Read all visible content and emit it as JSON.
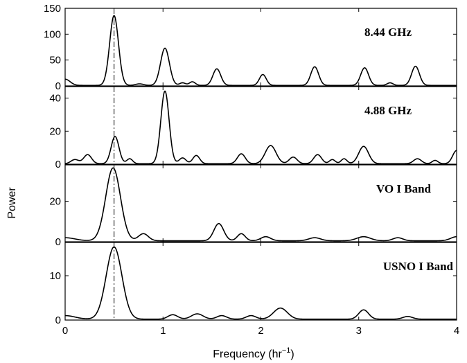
{
  "chart_data": {
    "type": "line",
    "xlabel": "Frequency (hr",
    "xlabel_sup": "−1",
    "xlabel_close": ")",
    "ylabel": "Power",
    "xlim": [
      0,
      4
    ],
    "xticks": [
      0,
      1,
      2,
      3,
      4
    ],
    "reference_line_x": 0.5,
    "panels": [
      {
        "name": "8.44 GHz",
        "ylim": [
          0,
          150
        ],
        "yticks": [
          0,
          50,
          100,
          150
        ],
        "baseline": 1,
        "peaks": [
          {
            "x": 0.0,
            "y": 12,
            "w": 0.05
          },
          {
            "x": 0.5,
            "y": 135,
            "w": 0.045
          },
          {
            "x": 0.76,
            "y": 3,
            "w": 0.04
          },
          {
            "x": 1.02,
            "y": 72,
            "w": 0.045
          },
          {
            "x": 1.2,
            "y": 5,
            "w": 0.03
          },
          {
            "x": 1.3,
            "y": 7,
            "w": 0.03
          },
          {
            "x": 1.55,
            "y": 32,
            "w": 0.04
          },
          {
            "x": 2.02,
            "y": 21,
            "w": 0.035
          },
          {
            "x": 2.55,
            "y": 36,
            "w": 0.04
          },
          {
            "x": 3.06,
            "y": 34,
            "w": 0.04
          },
          {
            "x": 3.32,
            "y": 5,
            "w": 0.03
          },
          {
            "x": 3.58,
            "y": 37,
            "w": 0.04
          }
        ]
      },
      {
        "name": "4.88 GHz",
        "ylim": [
          0,
          47
        ],
        "yticks": [
          0,
          20,
          40
        ],
        "baseline": 0.3,
        "peaks": [
          {
            "x": 0.1,
            "y": 2.5,
            "w": 0.04
          },
          {
            "x": 0.23,
            "y": 5.5,
            "w": 0.04
          },
          {
            "x": 0.51,
            "y": 16.5,
            "w": 0.04
          },
          {
            "x": 0.66,
            "y": 3,
            "w": 0.03
          },
          {
            "x": 1.02,
            "y": 44,
            "w": 0.042
          },
          {
            "x": 1.2,
            "y": 3.5,
            "w": 0.035
          },
          {
            "x": 1.34,
            "y": 5,
            "w": 0.035
          },
          {
            "x": 1.8,
            "y": 6,
            "w": 0.04
          },
          {
            "x": 2.1,
            "y": 11,
            "w": 0.055
          },
          {
            "x": 2.33,
            "y": 4,
            "w": 0.04
          },
          {
            "x": 2.58,
            "y": 5.5,
            "w": 0.04
          },
          {
            "x": 2.73,
            "y": 2.5,
            "w": 0.03
          },
          {
            "x": 2.85,
            "y": 3,
            "w": 0.03
          },
          {
            "x": 3.05,
            "y": 10.5,
            "w": 0.05
          },
          {
            "x": 3.6,
            "y": 3,
            "w": 0.04
          },
          {
            "x": 3.78,
            "y": 2,
            "w": 0.03
          },
          {
            "x": 4.0,
            "y": 8,
            "w": 0.04
          }
        ]
      },
      {
        "name": "VO I Band",
        "ylim": [
          0,
          38
        ],
        "yticks": [
          0,
          20
        ],
        "baseline": 0.5,
        "peaks": [
          {
            "x": 0.0,
            "y": 1.5,
            "w": 0.1
          },
          {
            "x": 0.49,
            "y": 36,
            "w": 0.075
          },
          {
            "x": 0.8,
            "y": 3.5,
            "w": 0.05
          },
          {
            "x": 1.57,
            "y": 8.5,
            "w": 0.05
          },
          {
            "x": 1.8,
            "y": 3.5,
            "w": 0.04
          },
          {
            "x": 2.05,
            "y": 2,
            "w": 0.05
          },
          {
            "x": 2.55,
            "y": 1.5,
            "w": 0.06
          },
          {
            "x": 3.05,
            "y": 2,
            "w": 0.07
          },
          {
            "x": 3.4,
            "y": 1.5,
            "w": 0.05
          },
          {
            "x": 4.0,
            "y": 2,
            "w": 0.06
          }
        ]
      },
      {
        "name": "USNO I Band",
        "ylim": [
          0,
          17.5
        ],
        "yticks": [
          0,
          10
        ],
        "baseline": 0.2,
        "peaks": [
          {
            "x": 0.0,
            "y": 0.8,
            "w": 0.1
          },
          {
            "x": 0.5,
            "y": 16.3,
            "w": 0.08
          },
          {
            "x": 1.1,
            "y": 1,
            "w": 0.05
          },
          {
            "x": 1.35,
            "y": 1.2,
            "w": 0.06
          },
          {
            "x": 1.6,
            "y": 0.8,
            "w": 0.05
          },
          {
            "x": 1.9,
            "y": 0.8,
            "w": 0.05
          },
          {
            "x": 2.2,
            "y": 2.5,
            "w": 0.07
          },
          {
            "x": 3.05,
            "y": 2.1,
            "w": 0.05
          },
          {
            "x": 3.5,
            "y": 0.6,
            "w": 0.05
          }
        ]
      }
    ]
  }
}
